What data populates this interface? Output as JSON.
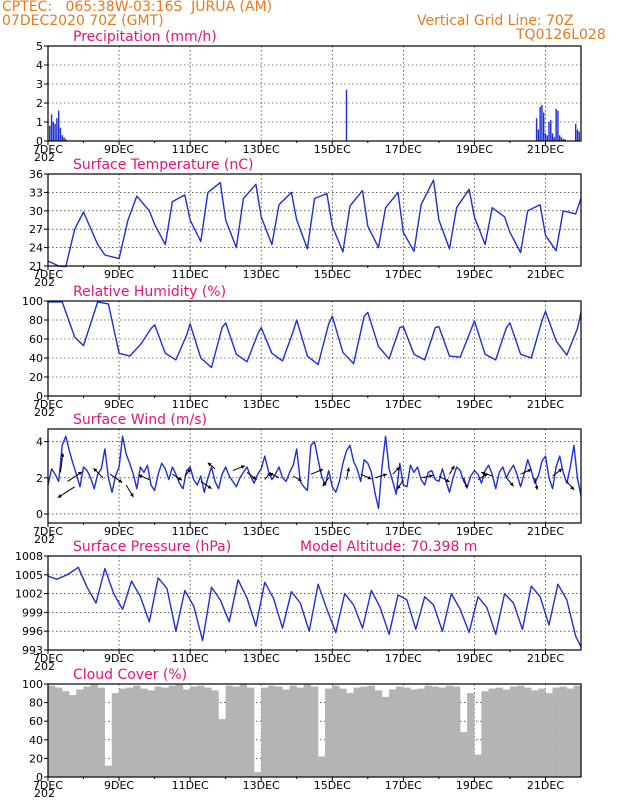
{
  "header": {
    "line1": "CPTEC:   065:38W-03:16S  JURUA (AM)",
    "line2": "07DEC2020 70Z (GMT)",
    "right1": "Vertical Grid Line: 70Z",
    "right2": "TQ0126L028"
  },
  "colors": {
    "header": "#e87a1e",
    "title": "#e8127c",
    "line": "#1f2fd8",
    "cloud": "#b4b4b4",
    "frame": "#000000"
  },
  "x_axis": {
    "labels": [
      "7DEC",
      "9DEC",
      "11DEC",
      "13DEC",
      "15DEC",
      "17DEC",
      "19DEC",
      "21DEC"
    ],
    "year_fragment": "202",
    "range_days": [
      0,
      15
    ]
  },
  "chart_data": [
    {
      "id": "precip",
      "type": "bar",
      "title": "Precipitation (mm/h)",
      "ylim": [
        0,
        5
      ],
      "yticks": [
        0,
        1,
        2,
        3,
        4,
        5
      ],
      "x_days": [
        0.05,
        0.1,
        0.15,
        0.2,
        0.25,
        0.3,
        0.35,
        0.4,
        0.45,
        0.5,
        8.4,
        13.75,
        13.8,
        13.85,
        13.9,
        13.95,
        14.0,
        14.05,
        14.1,
        14.15,
        14.2,
        14.25,
        14.3,
        14.35,
        14.4,
        14.45,
        14.5,
        14.55,
        14.85,
        14.9,
        14.95
      ],
      "values": [
        0.8,
        1.4,
        1.0,
        0.9,
        1.2,
        1.6,
        0.7,
        0.3,
        0.2,
        0.1,
        2.7,
        1.2,
        0.6,
        1.8,
        1.9,
        1.5,
        0.4,
        0.3,
        1.0,
        1.1,
        0.4,
        0.2,
        1.7,
        1.6,
        0.3,
        0.2,
        0.1,
        0.1,
        0.9,
        0.6,
        0.5
      ]
    },
    {
      "id": "temp",
      "type": "line",
      "title": "Surface Temperature (nC)",
      "ylim": [
        21,
        36
      ],
      "yticks": [
        21,
        24,
        27,
        30,
        33,
        36
      ],
      "x": [
        0.0,
        0.3,
        0.5,
        0.75,
        1.0,
        1.4,
        1.6,
        2.0,
        2.25,
        2.5,
        2.85,
        3.0,
        3.3,
        3.5,
        3.85,
        4.0,
        4.3,
        4.5,
        4.85,
        5.0,
        5.3,
        5.5,
        5.85,
        6.0,
        6.3,
        6.5,
        6.85,
        7.0,
        7.3,
        7.5,
        7.85,
        8.0,
        8.3,
        8.5,
        8.85,
        9.0,
        9.3,
        9.5,
        9.85,
        10.0,
        10.3,
        10.5,
        10.85,
        11.0,
        11.3,
        11.5,
        11.85,
        12.0,
        12.3,
        12.5,
        12.85,
        13.0,
        13.3,
        13.5,
        13.85,
        14.0,
        14.3,
        14.5,
        14.85,
        15.0
      ],
      "y": [
        21.8,
        21.0,
        20.9,
        27.0,
        29.8,
        24.5,
        22.8,
        22.2,
        28.5,
        32.4,
        30.0,
        27.8,
        24.5,
        31.5,
        32.6,
        28.5,
        25.0,
        33.0,
        34.6,
        28.5,
        24.0,
        32.0,
        34.3,
        29.0,
        24.5,
        31.0,
        33.0,
        28.5,
        23.8,
        32.0,
        32.8,
        27.5,
        23.3,
        30.8,
        33.3,
        27.5,
        24.0,
        30.5,
        33.0,
        26.5,
        23.4,
        31.0,
        35.0,
        28.5,
        23.8,
        30.5,
        33.5,
        29.0,
        24.5,
        30.5,
        29.0,
        26.5,
        23.2,
        30.0,
        31.0,
        26.0,
        23.5,
        30.0,
        29.5,
        32.0
      ]
    },
    {
      "id": "rh",
      "type": "line",
      "title": "Relative Humidity (%)",
      "ylim": [
        0,
        100
      ],
      "yticks": [
        0,
        20,
        40,
        60,
        80,
        100
      ],
      "x": [
        0.0,
        0.4,
        0.75,
        1.0,
        1.4,
        1.7,
        2.0,
        2.3,
        2.6,
        2.9,
        3.0,
        3.3,
        3.6,
        3.9,
        4.0,
        4.3,
        4.6,
        4.9,
        5.0,
        5.3,
        5.6,
        5.9,
        6.0,
        6.3,
        6.6,
        6.9,
        7.0,
        7.3,
        7.6,
        7.9,
        8.0,
        8.3,
        8.6,
        8.9,
        9.0,
        9.3,
        9.6,
        9.9,
        10.0,
        10.3,
        10.6,
        10.9,
        11.0,
        11.3,
        11.6,
        11.9,
        12.0,
        12.3,
        12.6,
        12.9,
        13.0,
        13.3,
        13.6,
        13.9,
        14.0,
        14.3,
        14.6,
        14.9,
        15.0
      ],
      "y": [
        99,
        99,
        62,
        53,
        99,
        97,
        45,
        42,
        54,
        71,
        75,
        45,
        38,
        64,
        76,
        40,
        30,
        72,
        77,
        44,
        36,
        65,
        72,
        45,
        37,
        68,
        80,
        42,
        33,
        76,
        84,
        46,
        34,
        84,
        88,
        52,
        39,
        72,
        73,
        44,
        38,
        72,
        73,
        42,
        41,
        69,
        79,
        44,
        38,
        72,
        77,
        44,
        40,
        79,
        89,
        58,
        43,
        71,
        88
      ]
    },
    {
      "id": "wind",
      "type": "line",
      "title": "Surface Wind (m/s)",
      "ylim": [
        -0.5,
        4.7
      ],
      "yticks": [
        0,
        2,
        4
      ],
      "x": [
        0.0,
        0.1,
        0.2,
        0.3,
        0.4,
        0.5,
        0.6,
        0.7,
        0.8,
        0.9,
        1.0,
        1.1,
        1.2,
        1.3,
        1.4,
        1.5,
        1.6,
        1.7,
        1.8,
        1.9,
        2.0,
        2.1,
        2.2,
        2.3,
        2.4,
        2.5,
        2.6,
        2.7,
        2.8,
        2.9,
        3.0,
        3.1,
        3.2,
        3.3,
        3.4,
        3.5,
        3.6,
        3.7,
        3.8,
        3.9,
        4.0,
        4.1,
        4.2,
        4.3,
        4.4,
        4.5,
        4.6,
        4.7,
        4.8,
        4.9,
        5.0,
        5.1,
        5.2,
        5.3,
        5.4,
        5.5,
        5.6,
        5.7,
        5.8,
        5.9,
        6.0,
        6.1,
        6.2,
        6.3,
        6.4,
        6.5,
        6.6,
        6.7,
        6.8,
        6.9,
        7.0,
        7.1,
        7.2,
        7.3,
        7.4,
        7.5,
        7.6,
        7.7,
        7.8,
        7.9,
        8.0,
        8.1,
        8.2,
        8.3,
        8.4,
        8.5,
        8.6,
        8.7,
        8.8,
        8.9,
        9.0,
        9.1,
        9.2,
        9.3,
        9.4,
        9.5,
        9.6,
        9.7,
        9.8,
        9.9,
        10.0,
        10.1,
        10.2,
        10.3,
        10.4,
        10.5,
        10.6,
        10.7,
        10.8,
        10.9,
        11.0,
        11.1,
        11.2,
        11.3,
        11.4,
        11.5,
        11.6,
        11.7,
        11.8,
        11.9,
        12.0,
        12.1,
        12.2,
        12.3,
        12.4,
        12.5,
        12.6,
        12.7,
        12.8,
        12.9,
        13.0,
        13.1,
        13.2,
        13.3,
        13.4,
        13.5,
        13.6,
        13.7,
        13.8,
        13.9,
        14.0,
        14.1,
        14.2,
        14.3,
        14.4,
        14.5,
        14.6,
        14.7,
        14.8,
        14.9,
        15.0
      ],
      "y": [
        1.6,
        2.5,
        2.2,
        1.8,
        3.8,
        4.3,
        3.5,
        2.8,
        2.2,
        1.5,
        2.6,
        2.4,
        2.0,
        1.4,
        2.2,
        2.5,
        3.6,
        2.0,
        1.2,
        2.1,
        2.6,
        4.3,
        3.3,
        2.8,
        2.2,
        1.4,
        2.6,
        2.3,
        2.7,
        1.6,
        1.3,
        2.2,
        2.8,
        2.5,
        1.9,
        2.6,
        2.2,
        1.7,
        1.4,
        2.4,
        2.6,
        1.9,
        1.6,
        2.1,
        1.2,
        2.0,
        2.6,
        1.8,
        1.4,
        2.2,
        2.6,
        2.1,
        1.8,
        1.5,
        2.0,
        2.3,
        2.6,
        2.1,
        1.7,
        2.2,
        2.5,
        3.2,
        2.4,
        1.9,
        2.2,
        2.6,
        2.0,
        1.8,
        2.3,
        2.7,
        3.6,
        1.8,
        1.5,
        1.3,
        3.8,
        4.0,
        3.0,
        2.1,
        1.6,
        2.4,
        1.5,
        1.2,
        1.8,
        2.8,
        3.5,
        3.8,
        2.9,
        2.5,
        1.8,
        3.0,
        2.8,
        2.3,
        1.2,
        0.3,
        2.6,
        4.3,
        2.5,
        1.8,
        1.1,
        2.8,
        1.6,
        1.5,
        2.7,
        2.3,
        2.6,
        1.9,
        1.6,
        2.3,
        2.4,
        1.9,
        1.8,
        2.5,
        1.8,
        1.2,
        2.0,
        2.6,
        2.4,
        1.8,
        1.5,
        2.1,
        2.4,
        2.2,
        1.7,
        2.4,
        2.7,
        2.2,
        1.4,
        2.3,
        2.6,
        2.0,
        2.4,
        2.7,
        2.2,
        1.5,
        2.2,
        3.0,
        2.4,
        1.7,
        2.1,
        2.9,
        3.2,
        2.0,
        1.4,
        2.6,
        3.2,
        2.3,
        1.7,
        2.6,
        3.8,
        2.0,
        1.0
      ],
      "arrows": [
        {
          "x": 0.35,
          "y": 2.3,
          "u": 0.2,
          "v": 1.6
        },
        {
          "x": 0.55,
          "y": 1.8,
          "u": 1.2,
          "v": 0.8
        },
        {
          "x": 0.75,
          "y": 1.5,
          "u": -1.4,
          "v": -0.9
        },
        {
          "x": 1.55,
          "y": 2.0,
          "u": -0.8,
          "v": 0.8
        },
        {
          "x": 1.75,
          "y": 2.2,
          "u": 1.0,
          "v": -0.7
        },
        {
          "x": 2.2,
          "y": 1.6,
          "u": 0.6,
          "v": -1.0
        },
        {
          "x": 2.85,
          "y": 1.9,
          "u": -0.9,
          "v": 0.4
        },
        {
          "x": 3.5,
          "y": 2.2,
          "u": 0.8,
          "v": -0.5
        },
        {
          "x": 3.85,
          "y": 2.1,
          "u": 0.5,
          "v": 0.6
        },
        {
          "x": 4.3,
          "y": 1.8,
          "u": 0.9,
          "v": -0.6
        },
        {
          "x": 4.7,
          "y": 2.5,
          "u": -0.6,
          "v": 0.5
        },
        {
          "x": 5.2,
          "y": 2.4,
          "u": 1.0,
          "v": 0.4
        },
        {
          "x": 5.6,
          "y": 2.3,
          "u": 0.8,
          "v": -0.6
        },
        {
          "x": 6.1,
          "y": 1.9,
          "u": 0.5,
          "v": 0.6
        },
        {
          "x": 6.5,
          "y": 2.0,
          "u": -0.8,
          "v": 0.4
        },
        {
          "x": 6.9,
          "y": 2.1,
          "u": 0.7,
          "v": -0.4
        },
        {
          "x": 7.4,
          "y": 2.2,
          "u": 1.0,
          "v": 0.4
        },
        {
          "x": 7.9,
          "y": 2.0,
          "u": -0.5,
          "v": -0.7
        },
        {
          "x": 8.4,
          "y": 1.9,
          "u": 0.2,
          "v": 1.0
        },
        {
          "x": 8.8,
          "y": 2.2,
          "u": 0.9,
          "v": -0.4
        },
        {
          "x": 9.2,
          "y": 2.0,
          "u": 1.0,
          "v": 0.3
        },
        {
          "x": 9.7,
          "y": 2.2,
          "u": 0.6,
          "v": 0.6
        },
        {
          "x": 10.0,
          "y": 1.9,
          "u": -0.5,
          "v": -0.8
        },
        {
          "x": 10.5,
          "y": 2.0,
          "u": 1.0,
          "v": 0.2
        },
        {
          "x": 11.0,
          "y": 2.1,
          "u": 0.9,
          "v": -0.5
        },
        {
          "x": 11.3,
          "y": 2.2,
          "u": 0.4,
          "v": 0.7
        },
        {
          "x": 11.7,
          "y": 2.0,
          "u": 0.3,
          "v": -0.9
        },
        {
          "x": 12.1,
          "y": 1.9,
          "u": 0.8,
          "v": 0.5
        },
        {
          "x": 12.5,
          "y": 2.1,
          "u": -0.9,
          "v": 0.3
        },
        {
          "x": 12.9,
          "y": 2.0,
          "u": 0.6,
          "v": -0.7
        },
        {
          "x": 13.3,
          "y": 2.2,
          "u": 0.9,
          "v": 0.4
        },
        {
          "x": 13.7,
          "y": 2.0,
          "u": 0.2,
          "v": -1.0
        },
        {
          "x": 14.2,
          "y": 2.1,
          "u": 0.8,
          "v": 0.6
        },
        {
          "x": 14.6,
          "y": 1.8,
          "u": 0.6,
          "v": -0.7
        }
      ]
    },
    {
      "id": "pressure",
      "type": "line",
      "title": "Surface Pressure (hPa)",
      "ylim": [
        993,
        1008
      ],
      "yticks": [
        993,
        996,
        999,
        1002,
        1005,
        1008
      ],
      "annotation": "Model Altitude: 70.398 m",
      "x": [
        0.0,
        0.25,
        0.5,
        0.6,
        0.85,
        1.1,
        1.35,
        1.6,
        1.85,
        2.1,
        2.35,
        2.6,
        2.85,
        3.1,
        3.35,
        3.6,
        3.85,
        4.1,
        4.35,
        4.6,
        4.85,
        5.1,
        5.35,
        5.6,
        5.85,
        6.1,
        6.35,
        6.6,
        6.85,
        7.1,
        7.35,
        7.6,
        7.85,
        8.1,
        8.35,
        8.6,
        8.85,
        9.1,
        9.35,
        9.6,
        9.85,
        10.1,
        10.35,
        10.6,
        10.85,
        11.1,
        11.35,
        11.6,
        11.85,
        12.1,
        12.35,
        12.6,
        12.85,
        13.1,
        13.35,
        13.6,
        13.85,
        14.1,
        14.35,
        14.6,
        14.85,
        15.0
      ],
      "y": [
        1004.8,
        1004.3,
        1004.9,
        1005.2,
        1006.2,
        1003.0,
        1000.5,
        1006.0,
        1002.0,
        999.5,
        1004.0,
        1001.5,
        997.5,
        1004.5,
        1002.8,
        996.0,
        1002.5,
        1000.0,
        994.5,
        1003.0,
        1001.0,
        997.5,
        1004.2,
        1001.3,
        996.8,
        1003.8,
        1001.2,
        996.5,
        1002.3,
        1000.5,
        996.0,
        1003.5,
        999.5,
        995.8,
        1002.0,
        1000.2,
        996.5,
        1002.5,
        999.8,
        995.5,
        1001.8,
        1001.0,
        996.3,
        1001.5,
        1000.2,
        996.0,
        1002.0,
        999.5,
        995.8,
        1001.5,
        999.8,
        995.5,
        1002.0,
        1000.5,
        996.3,
        1003.2,
        1001.5,
        997.0,
        1003.5,
        1001.0,
        995.2,
        993.5
      ]
    },
    {
      "id": "cloud",
      "type": "area",
      "title": "Cloud Cover (%)",
      "ylim": [
        0,
        100
      ],
      "yticks": [
        0,
        20,
        40,
        60,
        80,
        100
      ],
      "x": [
        0.0,
        0.2,
        0.4,
        0.6,
        0.8,
        1.0,
        1.2,
        1.4,
        1.6,
        1.8,
        2.0,
        2.2,
        2.4,
        2.6,
        2.8,
        3.0,
        3.2,
        3.4,
        3.6,
        3.8,
        4.0,
        4.2,
        4.4,
        4.6,
        4.8,
        5.0,
        5.2,
        5.4,
        5.6,
        5.8,
        6.0,
        6.2,
        6.4,
        6.6,
        6.8,
        7.0,
        7.2,
        7.4,
        7.6,
        7.8,
        8.0,
        8.2,
        8.4,
        8.6,
        8.8,
        9.0,
        9.2,
        9.4,
        9.6,
        9.8,
        10.0,
        10.2,
        10.4,
        10.6,
        10.8,
        11.0,
        11.2,
        11.4,
        11.6,
        11.8,
        12.0,
        12.2,
        12.4,
        12.6,
        12.8,
        13.0,
        13.2,
        13.4,
        13.6,
        13.8,
        14.0,
        14.2,
        14.4,
        14.6,
        14.8,
        15.0
      ],
      "y": [
        98,
        96,
        92,
        88,
        94,
        97,
        99,
        96,
        12,
        90,
        95,
        96,
        98,
        95,
        93,
        97,
        96,
        98,
        99,
        94,
        97,
        98,
        96,
        93,
        62,
        98,
        97,
        99,
        96,
        5,
        96,
        98,
        97,
        94,
        98,
        96,
        99,
        97,
        22,
        95,
        98,
        95,
        90,
        96,
        97,
        98,
        93,
        86,
        94,
        97,
        96,
        94,
        95,
        98,
        97,
        96,
        98,
        97,
        48,
        90,
        24,
        92,
        95,
        96,
        94,
        97,
        98,
        96,
        93,
        95,
        90,
        96,
        97,
        95,
        98,
        99
      ]
    }
  ]
}
